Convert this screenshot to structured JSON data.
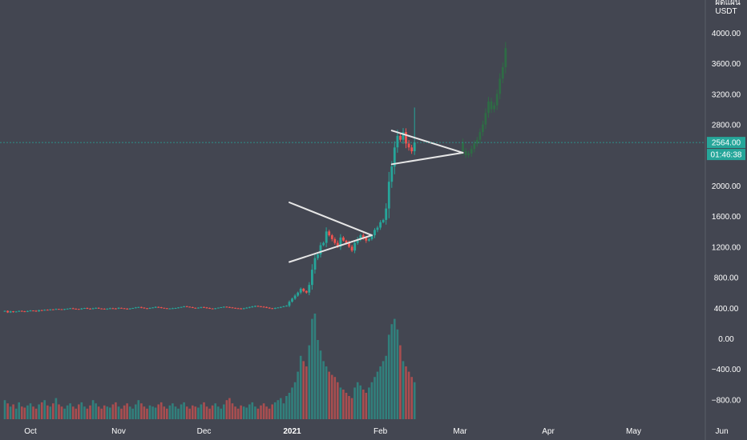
{
  "chart_data": {
    "type": "candlestick",
    "title": "",
    "currency_label_top": "ผิดแผน",
    "currency_label": "USDT",
    "y_ticks": [
      "4000.00",
      "3600.00",
      "3200.00",
      "2800.00",
      "2400.00",
      "2000.00",
      "1600.00",
      "1200.00",
      "800.00",
      "400.00",
      "0.00",
      "−400.00",
      "−800.00"
    ],
    "x_ticks": [
      "Oct",
      "Nov",
      "Dec",
      "2021",
      "Feb",
      "Mar",
      "Apr",
      "May",
      "Jun"
    ],
    "ylim": [
      -1250,
      4350
    ],
    "grid": false,
    "current_price": {
      "value": 2564.0,
      "label": "2564.00",
      "countdown": "01:46:38"
    },
    "colors": {
      "background": "#434651",
      "up": "#26a69a",
      "down": "#ef5350",
      "projection": "#2f6b45",
      "pattern_lines": "#e6e6e6",
      "price_line": "#26a69a",
      "axis_text": "#ffffff"
    },
    "price_series": {
      "start_date": "2020-09-22",
      "note": "daily closes (USDT)",
      "closes": [
        360,
        340,
        355,
        345,
        352,
        360,
        355,
        348,
        358,
        365,
        362,
        355,
        370,
        368,
        375,
        372,
        380,
        378,
        385,
        382,
        378,
        385,
        390,
        395,
        388,
        385,
        380,
        392,
        398,
        390,
        385,
        395,
        400,
        392,
        388,
        382,
        390,
        395,
        392,
        388,
        400,
        395,
        390,
        385,
        392,
        398,
        405,
        410,
        402,
        395,
        390,
        398,
        405,
        412,
        408,
        400,
        395,
        390,
        392,
        395,
        398,
        405,
        412,
        420,
        415,
        408,
        400,
        395,
        402,
        410,
        405,
        398,
        392,
        388,
        395,
        402,
        408,
        415,
        410,
        405,
        400,
        395,
        392,
        388,
        395,
        402,
        410,
        418,
        425,
        420,
        415,
        410,
        402,
        395,
        390,
        398,
        405,
        412,
        420,
        428,
        480,
        520,
        560,
        600,
        650,
        620,
        600,
        700,
        900,
        1050,
        1100,
        1220,
        1250,
        1400,
        1350,
        1300,
        1250,
        1200,
        1320,
        1280,
        1250,
        1200,
        1150,
        1250,
        1300,
        1350,
        1320,
        1280,
        1300,
        1350,
        1420,
        1450,
        1520,
        1550,
        1700,
        2050,
        2250,
        2500,
        2650,
        2600,
        2700,
        2550,
        2500,
        2450,
        2564
      ]
    },
    "projection": {
      "note": "projected path after current bar",
      "closes": [
        2450,
        2400,
        2420,
        2480,
        2550,
        2600,
        2700,
        2800,
        2950,
        3100,
        3000,
        3050,
        3200,
        3400,
        3550,
        3800
      ]
    },
    "volume": {
      "note": "relative volume, 0-1",
      "values": [
        0.18,
        0.15,
        0.12,
        0.14,
        0.1,
        0.16,
        0.12,
        0.11,
        0.13,
        0.15,
        0.12,
        0.1,
        0.14,
        0.16,
        0.18,
        0.13,
        0.12,
        0.15,
        0.2,
        0.14,
        0.12,
        0.1,
        0.13,
        0.15,
        0.12,
        0.1,
        0.14,
        0.16,
        0.12,
        0.1,
        0.13,
        0.18,
        0.15,
        0.12,
        0.1,
        0.13,
        0.12,
        0.11,
        0.14,
        0.16,
        0.12,
        0.1,
        0.13,
        0.15,
        0.12,
        0.1,
        0.14,
        0.18,
        0.15,
        0.12,
        0.1,
        0.13,
        0.12,
        0.11,
        0.14,
        0.16,
        0.12,
        0.1,
        0.13,
        0.15,
        0.12,
        0.1,
        0.14,
        0.16,
        0.12,
        0.1,
        0.13,
        0.12,
        0.11,
        0.14,
        0.16,
        0.12,
        0.1,
        0.13,
        0.15,
        0.12,
        0.1,
        0.14,
        0.18,
        0.2,
        0.15,
        0.12,
        0.1,
        0.13,
        0.12,
        0.11,
        0.14,
        0.16,
        0.12,
        0.1,
        0.13,
        0.15,
        0.12,
        0.1,
        0.14,
        0.16,
        0.18,
        0.2,
        0.15,
        0.22,
        0.25,
        0.3,
        0.35,
        0.45,
        0.6,
        0.55,
        0.5,
        0.7,
        0.95,
        1.0,
        0.75,
        0.65,
        0.55,
        0.5,
        0.45,
        0.42,
        0.4,
        0.35,
        0.3,
        0.28,
        0.25,
        0.22,
        0.2,
        0.3,
        0.35,
        0.32,
        0.28,
        0.25,
        0.3,
        0.35,
        0.4,
        0.45,
        0.5,
        0.55,
        0.6,
        0.8,
        0.9,
        0.95,
        0.85,
        0.7,
        0.55,
        0.5,
        0.45,
        0.4,
        0.35
      ]
    },
    "annotations": [
      {
        "type": "triangle",
        "name": "symmetrical-triangle-1",
        "upper": [
          [
            "2020-12-31",
            1780
          ],
          [
            "2021-01-29",
            1350
          ]
        ],
        "lower": [
          [
            "2020-12-31",
            1000
          ],
          [
            "2021-01-29",
            1350
          ]
        ]
      },
      {
        "type": "triangle",
        "name": "symmetrical-triangle-2",
        "upper": [
          [
            "2021-02-05",
            2720
          ],
          [
            "2021-03-02",
            2430
          ]
        ],
        "lower": [
          [
            "2021-02-05",
            2280
          ],
          [
            "2021-03-02",
            2430
          ]
        ]
      }
    ]
  }
}
